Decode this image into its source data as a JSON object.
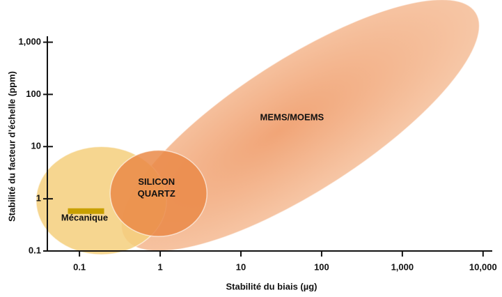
{
  "chart_data": {
    "type": "ellipse",
    "xlabel": "Stabilité du biais (µg)",
    "ylabel": "Stabilité du facteur d’échelle (ppm)",
    "xscale": "log",
    "yscale": "log",
    "xlim": [
      0.04,
      13000
    ],
    "ylim": [
      0.1,
      1300
    ],
    "xticks": [
      0.1,
      1,
      10,
      100,
      {
        "value": 1000,
        "label": "1,000"
      },
      {
        "value": 10000,
        "label": "10,000"
      }
    ],
    "yticks": [
      0.1,
      1,
      10,
      100,
      {
        "value": 1000,
        "label": "1,000"
      }
    ],
    "regions": [
      {
        "name": "MEMS/MOEMS",
        "color": "#f2a677",
        "x": [
          0.33,
          9000
        ],
        "y": [
          0.16,
          4100
        ]
      },
      {
        "name": "Mécanique",
        "color": "#f5cf7c",
        "x": [
          0.029,
          1.2
        ],
        "y": [
          0.085,
          10
        ]
      },
      {
        "name": "SILICON QUARTZ",
        "color": "#ea8a48",
        "x": [
          0.24,
          3.8
        ],
        "y": [
          0.19,
          8.5
        ]
      }
    ]
  }
}
